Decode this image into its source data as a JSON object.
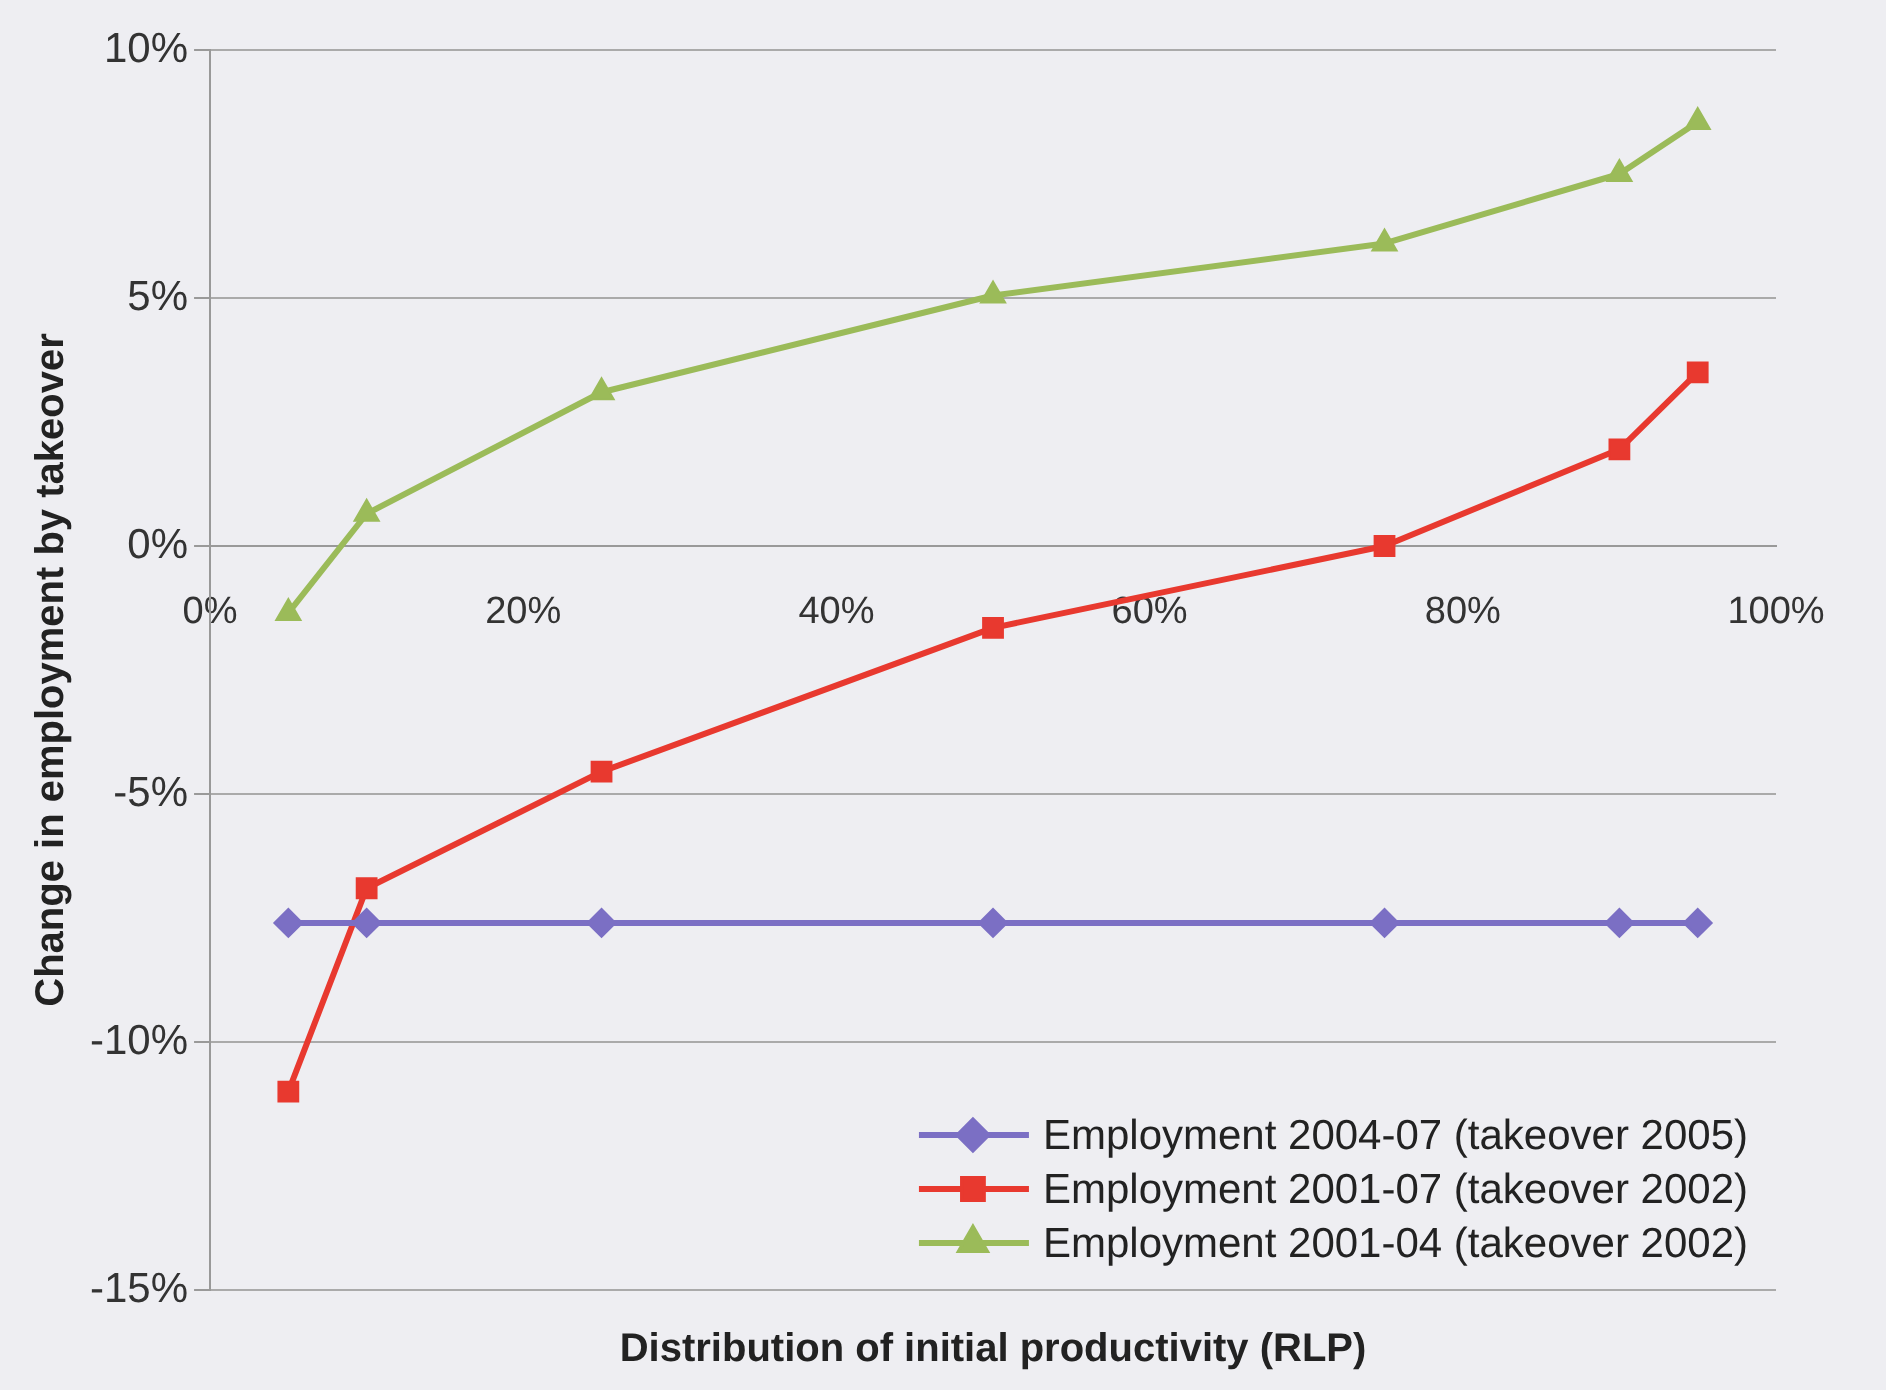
{
  "chart_data": {
    "type": "line",
    "xlabel": "Distribution of initial productivity (RLP)",
    "ylabel": "Change in employment by takeover",
    "x": [
      5,
      10,
      25,
      50,
      75,
      90,
      95
    ],
    "series": [
      {
        "name": "Employment 2004-07 (takeover 2005)",
        "color": "#7b6fc4",
        "marker": "diamond",
        "values": [
          -7.6,
          -7.6,
          -7.6,
          -7.6,
          -7.6,
          -7.6,
          -7.6
        ]
      },
      {
        "name": "Employment 2001-07 (takeover 2002)",
        "color": "#e8392f",
        "marker": "square",
        "values": [
          -11.0,
          -6.9,
          -4.55,
          -1.65,
          0,
          1.95,
          3.5
        ]
      },
      {
        "name": "Employment 2001-04 (takeover 2002)",
        "color": "#9bbb59",
        "marker": "triangle",
        "values": [
          -1.35,
          0.65,
          3.1,
          5.05,
          6.1,
          7.5,
          8.55
        ]
      }
    ],
    "xlim": [
      0,
      100
    ],
    "xticks": [
      {
        "value": 0,
        "label": "0%"
      },
      {
        "value": 20,
        "label": "20%"
      },
      {
        "value": 40,
        "label": "40%"
      },
      {
        "value": 60,
        "label": "60%"
      },
      {
        "value": 80,
        "label": "80%"
      },
      {
        "value": 100,
        "label": "100%"
      }
    ],
    "ylim": [
      -15,
      10
    ],
    "yticks": [
      {
        "value": -15,
        "label": "-15%"
      },
      {
        "value": -10,
        "label": "-10%"
      },
      {
        "value": -5,
        "label": "-5%"
      },
      {
        "value": 0,
        "label": "0%"
      },
      {
        "value": 5,
        "label": "5%"
      },
      {
        "value": 10,
        "label": "10%"
      }
    ],
    "grid": "y",
    "legend": "bottom right",
    "line_style": "solid"
  }
}
